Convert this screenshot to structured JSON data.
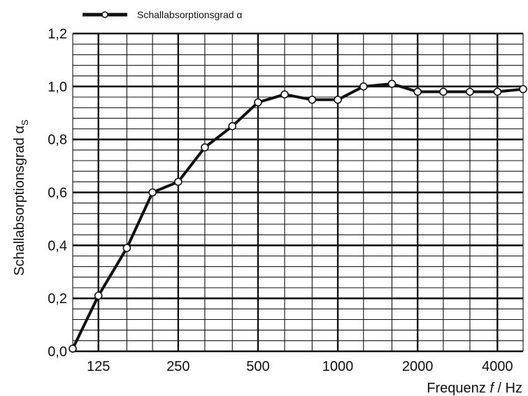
{
  "chart_data": {
    "type": "line",
    "title": "",
    "xlabel_prefix": "Frequenz ",
    "xlabel_var": "f",
    "xlabel_suffix": " / Hz",
    "ylabel_main": "Schallabsorptionsgrad α",
    "ylabel_sub": "S",
    "x_scale": "log (third-octave bands)",
    "x": [
      100,
      125,
      160,
      200,
      250,
      315,
      400,
      500,
      630,
      800,
      1000,
      1250,
      1600,
      2000,
      2500,
      3150,
      4000,
      5000
    ],
    "x_tick_labels": [
      "125",
      "250",
      "500",
      "1000",
      "2000",
      "4000"
    ],
    "x_tick_values": [
      125,
      250,
      500,
      1000,
      2000,
      4000
    ],
    "ylim": [
      0.0,
      1.2
    ],
    "y_tick_labels": [
      "0,0",
      "0,2",
      "0,4",
      "0,6",
      "0,8",
      "1,0",
      "1,2"
    ],
    "y_tick_values": [
      0.0,
      0.2,
      0.4,
      0.6,
      0.8,
      1.0,
      1.2
    ],
    "grid": "on",
    "legend_position": "top-left",
    "series": [
      {
        "name": "Schallabsorptionsgrad α",
        "color": "#111111",
        "marker": "open-circle",
        "values": [
          0.01,
          0.21,
          0.39,
          0.6,
          0.64,
          0.77,
          0.85,
          0.94,
          0.97,
          0.95,
          0.95,
          1.0,
          1.01,
          0.98,
          0.98,
          0.98,
          0.98,
          0.99
        ]
      }
    ]
  }
}
